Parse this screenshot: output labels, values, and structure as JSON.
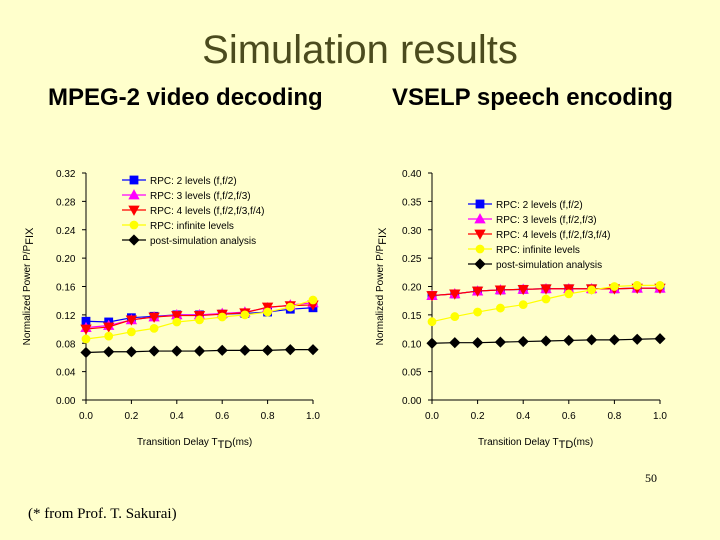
{
  "slide": {
    "title": "Simulation results",
    "credit": "(* from Prof. T. Sakurai)",
    "page_number": "50"
  },
  "chart_data": [
    {
      "type": "line",
      "title": "MPEG-2 video decoding",
      "xlabel": "Transition Delay T",
      "xlabel_sub": "TD",
      "xlabel_suffix": "(ms)",
      "ylabel": "Normalized Power P/P",
      "ylabel_sub": "FIX",
      "xlim": [
        0.0,
        1.0
      ],
      "ylim": [
        0.0,
        0.32
      ],
      "xticks": [
        "0.0",
        "0.2",
        "0.4",
        "0.6",
        "0.8",
        "1.0"
      ],
      "yticks": [
        "0.00",
        "0.04",
        "0.08",
        "0.12",
        "0.16",
        "0.20",
        "0.24",
        "0.28",
        "0.32"
      ],
      "legend_position": "top-right",
      "x": [
        0.0,
        0.1,
        0.2,
        0.3,
        0.4,
        0.5,
        0.6,
        0.7,
        0.8,
        0.9,
        1.0
      ],
      "series": [
        {
          "name": "RPC: 2 levels (f,f/2)",
          "color": "#0000FF",
          "marker": "square",
          "values": [
            0.111,
            0.11,
            0.116,
            0.118,
            0.12,
            0.12,
            0.121,
            0.122,
            0.124,
            0.128,
            0.13
          ]
        },
        {
          "name": "RPC: 3 levels (f,f/2,f/3)",
          "color": "#FF00FF",
          "marker": "triangle",
          "values": [
            0.102,
            0.105,
            0.113,
            0.117,
            0.12,
            0.12,
            0.122,
            0.124,
            0.13,
            0.134,
            0.137
          ]
        },
        {
          "name": "RPC: 4 levels (f,f/2,f/3,f/4)",
          "color": "#FF0000",
          "marker": "triangle-down",
          "values": [
            0.1,
            0.103,
            0.113,
            0.117,
            0.119,
            0.119,
            0.121,
            0.123,
            0.131,
            0.133,
            0.134
          ]
        },
        {
          "name": "RPC: infinite levels",
          "color": "#FFFF00",
          "marker": "circle",
          "values": [
            0.086,
            0.09,
            0.096,
            0.101,
            0.11,
            0.113,
            0.117,
            0.12,
            0.124,
            0.131,
            0.141
          ]
        },
        {
          "name": "post-simulation analysis",
          "color": "#000000",
          "marker": "diamond",
          "values": [
            0.067,
            0.068,
            0.068,
            0.069,
            0.069,
            0.069,
            0.07,
            0.07,
            0.07,
            0.071,
            0.071
          ]
        }
      ]
    },
    {
      "type": "line",
      "title": "VSELP speech encoding",
      "xlabel": "Transition Delay T",
      "xlabel_sub": "TD",
      "xlabel_suffix": "(ms)",
      "ylabel": "Normalized Power P/P",
      "ylabel_sub": "FIX",
      "xlim": [
        0.0,
        1.0
      ],
      "ylim": [
        0.0,
        0.4
      ],
      "xticks": [
        "0.0",
        "0.2",
        "0.4",
        "0.6",
        "0.8",
        "1.0"
      ],
      "yticks": [
        "0.00",
        "0.05",
        "0.10",
        "0.15",
        "0.20",
        "0.25",
        "0.30",
        "0.35",
        "0.40"
      ],
      "legend_position": "top-right",
      "x": [
        0.0,
        0.1,
        0.2,
        0.3,
        0.4,
        0.5,
        0.6,
        0.7,
        0.8,
        0.9,
        1.0
      ],
      "series": [
        {
          "name": "RPC: 2 levels (f,f/2)",
          "color": "#0000FF",
          "marker": "square",
          "values": [
            0.184,
            0.187,
            0.192,
            0.194,
            0.195,
            0.196,
            0.196,
            0.196,
            0.196,
            0.197,
            0.197
          ]
        },
        {
          "name": "RPC: 3 levels (f,f/2,f/3)",
          "color": "#FF00FF",
          "marker": "triangle",
          "values": [
            0.184,
            0.187,
            0.192,
            0.194,
            0.195,
            0.196,
            0.196,
            0.196,
            0.196,
            0.197,
            0.197
          ]
        },
        {
          "name": "RPC: 4 levels (f,f/2,f/3,f/4)",
          "color": "#FF0000",
          "marker": "triangle-down",
          "values": [
            0.184,
            0.187,
            0.192,
            0.194,
            0.195,
            0.196,
            0.196,
            0.196,
            0.196,
            0.197,
            0.197
          ]
        },
        {
          "name": "RPC: infinite levels",
          "color": "#FFFF00",
          "marker": "circle",
          "values": [
            0.138,
            0.147,
            0.155,
            0.162,
            0.168,
            0.178,
            0.187,
            0.194,
            0.2,
            0.202,
            0.202
          ]
        },
        {
          "name": "post-simulation analysis",
          "color": "#000000",
          "marker": "diamond",
          "values": [
            0.1,
            0.101,
            0.101,
            0.102,
            0.103,
            0.104,
            0.105,
            0.106,
            0.106,
            0.107,
            0.108
          ]
        }
      ]
    }
  ]
}
